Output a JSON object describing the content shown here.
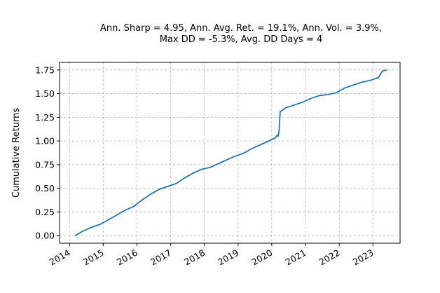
{
  "chart_data": {
    "type": "line",
    "title_line1": "Ann. Sharp = 4.95, Ann. Avg. Ret. = 19.1%, Ann. Vol. = 3.9%,",
    "title_line2": "Max DD = -5.3%, Avg. DD Days = 4",
    "xlabel": "",
    "ylabel": "Cumulative Returns",
    "x_type": "date",
    "xlim": [
      "2013-09-15",
      "2023-10-22"
    ],
    "ylim": [
      -0.08,
      1.83
    ],
    "x_ticks": [
      {
        "date": "2014-01-01",
        "label": "2014"
      },
      {
        "date": "2015-01-01",
        "label": "2015"
      },
      {
        "date": "2016-01-01",
        "label": "2016"
      },
      {
        "date": "2017-01-01",
        "label": "2017"
      },
      {
        "date": "2018-01-01",
        "label": "2018"
      },
      {
        "date": "2019-01-01",
        "label": "2019"
      },
      {
        "date": "2020-01-01",
        "label": "2020"
      },
      {
        "date": "2021-01-01",
        "label": "2021"
      },
      {
        "date": "2022-01-01",
        "label": "2022"
      },
      {
        "date": "2023-01-01",
        "label": "2023"
      }
    ],
    "y_ticks": [
      {
        "value": 0.0,
        "label": "0.00"
      },
      {
        "value": 0.25,
        "label": "0.25"
      },
      {
        "value": 0.5,
        "label": "0.50"
      },
      {
        "value": 0.75,
        "label": "0.75"
      },
      {
        "value": 1.0,
        "label": "1.00"
      },
      {
        "value": 1.25,
        "label": "1.25"
      },
      {
        "value": 1.5,
        "label": "1.50"
      },
      {
        "value": 1.75,
        "label": "1.75"
      }
    ],
    "grid": true,
    "grid_style": "dashed",
    "series": [
      {
        "color": "#1f77b4",
        "x": [
          "2014-03-01",
          "2014-06-01",
          "2014-09-01",
          "2014-12-01",
          "2015-03-01",
          "2015-06-01",
          "2015-09-01",
          "2015-12-01",
          "2016-03-01",
          "2016-06-01",
          "2016-09-01",
          "2016-12-01",
          "2017-03-01",
          "2017-06-01",
          "2017-09-01",
          "2017-12-01",
          "2018-03-01",
          "2018-06-01",
          "2018-09-01",
          "2018-12-01",
          "2019-03-01",
          "2019-06-01",
          "2019-09-01",
          "2019-12-01",
          "2020-02-01",
          "2020-03-01",
          "2020-03-10",
          "2020-03-20",
          "2020-04-01",
          "2020-06-01",
          "2020-09-01",
          "2020-12-01",
          "2021-03-01",
          "2021-06-01",
          "2021-09-01",
          "2021-12-01",
          "2022-03-01",
          "2022-06-01",
          "2022-09-01",
          "2022-12-01",
          "2023-03-01",
          "2023-04-15",
          "2023-06-01"
        ],
        "y": [
          0.0,
          0.05,
          0.09,
          0.12,
          0.17,
          0.22,
          0.27,
          0.31,
          0.38,
          0.44,
          0.49,
          0.52,
          0.55,
          0.61,
          0.66,
          0.7,
          0.72,
          0.76,
          0.8,
          0.84,
          0.87,
          0.92,
          0.96,
          1.0,
          1.03,
          1.06,
          1.05,
          1.1,
          1.31,
          1.35,
          1.38,
          1.41,
          1.45,
          1.48,
          1.49,
          1.51,
          1.56,
          1.59,
          1.62,
          1.64,
          1.67,
          1.74,
          1.75
        ]
      }
    ]
  }
}
